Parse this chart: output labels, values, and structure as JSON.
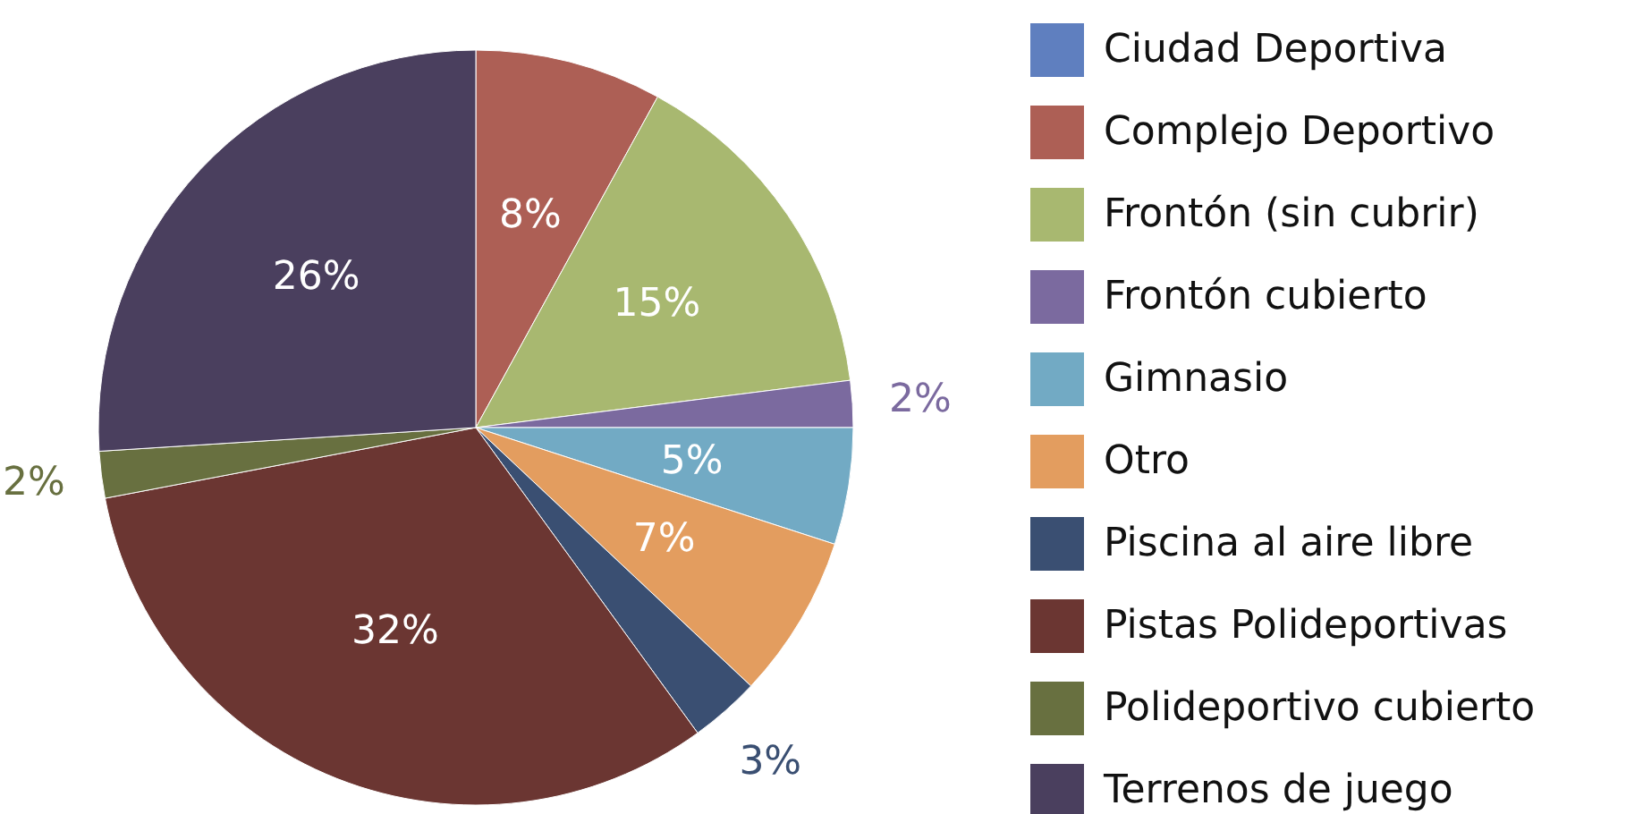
{
  "chart_data": {
    "type": "pie",
    "categories": [
      "Ciudad Deportiva",
      "Complejo Deportivo",
      "Frontón (sin cubrir)",
      "Frontón  cubierto",
      "Gimnasio",
      "Otro",
      "Piscina al aire libre",
      "Pistas Polideportivas",
      "Polideportivo cubierto",
      "Terrenos de juego"
    ],
    "values": [
      0,
      8,
      15,
      2,
      5,
      7,
      3,
      32,
      2,
      26
    ],
    "value_labels": [
      null,
      "8%",
      "15%",
      "2%",
      "5%",
      "7%",
      "3%",
      "32%",
      "2%",
      "26%"
    ],
    "colors": [
      "#5f7fbf",
      "#ad5f55",
      "#a8b870",
      "#7b6a9f",
      "#72aac4",
      "#e39d5f",
      "#3a4f72",
      "#6b3632",
      "#687040",
      "#4a3f5e"
    ],
    "legend": "right"
  }
}
